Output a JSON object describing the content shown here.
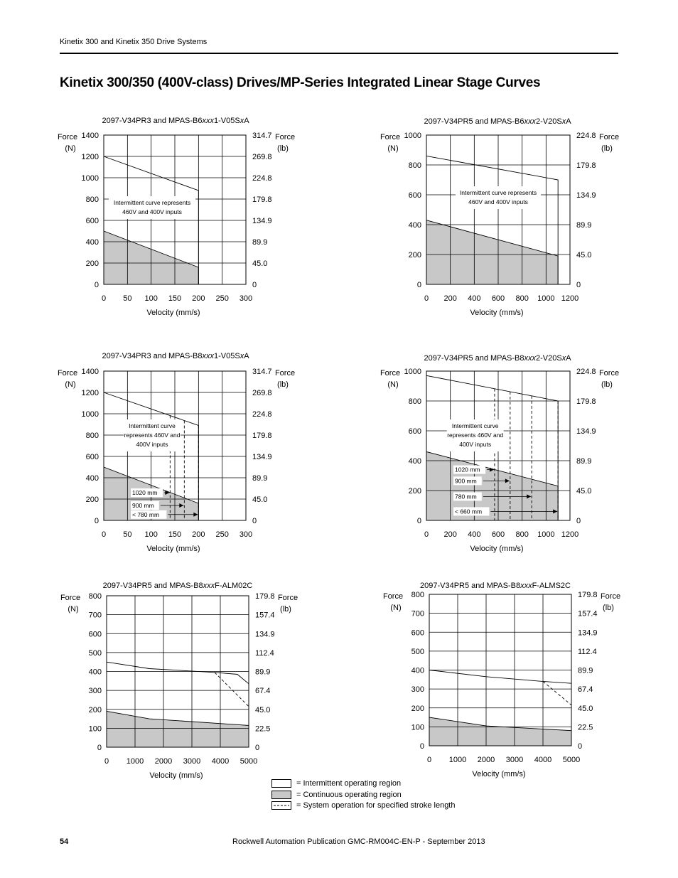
{
  "header": {
    "running_title": "Kinetix 300 and Kinetix 350 Drive Systems"
  },
  "page_title": "Kinetix 300/350 (400V-class) Drives/MP-Series Integrated Linear Stage Curves",
  "footer": {
    "page_number": "54",
    "publication": "Rockwell Automation Publication GMC-RM004C-EN-P - September 2013"
  },
  "legend": {
    "intermittent": "= Intermittent operating region",
    "continuous": "= Continuous operating region",
    "stroke": "= System operation for specified stroke length"
  },
  "colors": {
    "continuous_fill": "#c8c8c8",
    "line": "#000000"
  },
  "chart_data": [
    {
      "type": "area",
      "title_pre": "2097-V34PR3 and MPAS-B6",
      "title_it": "xxx",
      "title_mid": "1-V05S",
      "title_it2": "x",
      "title_post": "A",
      "ylabel_left": [
        "Force",
        "(N)"
      ],
      "ylabel_right": [
        "Force",
        "(lb)"
      ],
      "xlabel": "Velocity (mm/s)",
      "xlim": [
        0,
        300
      ],
      "ylim": [
        0,
        1400
      ],
      "xticks": [
        0,
        50,
        100,
        150,
        200,
        250,
        300
      ],
      "xtick_labels": [
        "0",
        "50",
        "100",
        "150",
        "200",
        "250",
        "300"
      ],
      "yticks": [
        0,
        200,
        400,
        600,
        800,
        1000,
        1200,
        1400
      ],
      "yticks_right": [
        "0",
        "45.0",
        "89.9",
        "134.9",
        "179.8",
        "224.8",
        "269.8",
        "314.7"
      ],
      "intermittent": [
        [
          0,
          1200
        ],
        [
          200,
          880
        ],
        [
          200,
          0
        ]
      ],
      "continuous": [
        [
          0,
          500
        ],
        [
          200,
          160
        ],
        [
          200,
          0
        ]
      ],
      "annotation": [
        "Intermittent curve represents",
        "460V and 400V inputs"
      ],
      "strokes": []
    },
    {
      "type": "area",
      "title_pre": "2097-V34PR5 and MPAS-B6",
      "title_it": "xxx",
      "title_mid": "2-V20S",
      "title_it2": "x",
      "title_post": "A",
      "ylabel_left": [
        "Force",
        "(N)"
      ],
      "ylabel_right": [
        "Force",
        "(lb)"
      ],
      "xlabel": "Velocity (mm/s)",
      "xlim": [
        0,
        1200
      ],
      "ylim": [
        0,
        1000
      ],
      "xticks": [
        0,
        200,
        400,
        600,
        800,
        1000,
        1200
      ],
      "xtick_labels": [
        "0",
        "200",
        "400",
        "600",
        "800",
        "1000",
        "1200"
      ],
      "yticks": [
        0,
        200,
        400,
        600,
        800,
        1000
      ],
      "yticks_right": [
        "0",
        "45.0",
        "89.9",
        "134.9",
        "179.8",
        "224.8"
      ],
      "intermittent": [
        [
          0,
          860
        ],
        [
          1100,
          700
        ],
        [
          1100,
          0
        ]
      ],
      "continuous": [
        [
          0,
          430
        ],
        [
          1100,
          190
        ],
        [
          1100,
          0
        ]
      ],
      "annotation": [
        "Intermittent curve represents",
        "460V and 400V inputs"
      ],
      "strokes": []
    },
    {
      "type": "area",
      "title_pre": "2097-V34PR3 and MPAS-B8",
      "title_it": "xxx",
      "title_mid": "1-V05S",
      "title_it2": "x",
      "title_post": "A",
      "ylabel_left": [
        "Force",
        "(N)"
      ],
      "ylabel_right": [
        "Force",
        "(lb)"
      ],
      "xlabel": "Velocity (mm/s)",
      "xlim": [
        0,
        300
      ],
      "ylim": [
        0,
        1400
      ],
      "xticks": [
        0,
        50,
        100,
        150,
        200,
        250,
        300
      ],
      "xtick_labels": [
        "0",
        "50",
        "100",
        "150",
        "200",
        "250",
        "300"
      ],
      "yticks": [
        0,
        200,
        400,
        600,
        800,
        1000,
        1200,
        1400
      ],
      "yticks_right": [
        "0",
        "45.0",
        "89.9",
        "134.9",
        "179.8",
        "224.8",
        "269.8",
        "314.7"
      ],
      "intermittent": [
        [
          0,
          1200
        ],
        [
          200,
          890
        ],
        [
          200,
          0
        ]
      ],
      "continuous": [
        [
          0,
          500
        ],
        [
          200,
          160
        ],
        [
          200,
          0
        ]
      ],
      "annotation": [
        "Intermittent curve",
        "represents 460V and",
        "400V inputs"
      ],
      "strokes": [
        {
          "label": "1020 mm",
          "x": 140,
          "y": 260
        },
        {
          "label": "900 mm",
          "x": 170,
          "y": 140
        },
        {
          "label": "< 780 mm",
          "x": 200,
          "y": 55
        }
      ]
    },
    {
      "type": "area",
      "title_pre": "2097-V34PR5 and MPAS-B8",
      "title_it": "xxx",
      "title_mid": "2-V20S",
      "title_it2": "x",
      "title_post": "A",
      "ylabel_left": [
        "Force",
        "(N)"
      ],
      "ylabel_right": [
        "Force",
        "(lb)"
      ],
      "xlabel": "Velocity (mm/s)",
      "xlim": [
        0,
        1200
      ],
      "ylim": [
        0,
        1000
      ],
      "xticks": [
        0,
        200,
        400,
        600,
        800,
        1000,
        1200
      ],
      "xtick_labels": [
        "0",
        "200",
        "400",
        "600",
        "800",
        "1000",
        "1200"
      ],
      "yticks": [
        0,
        200,
        400,
        600,
        800,
        1000
      ],
      "yticks_right": [
        "0",
        "45.0",
        "89.9",
        "134.9",
        "179.8",
        "224.8"
      ],
      "intermittent": [
        [
          0,
          970
        ],
        [
          1100,
          800
        ],
        [
          1100,
          0
        ]
      ],
      "continuous": [
        [
          0,
          460
        ],
        [
          1100,
          230
        ],
        [
          1100,
          0
        ]
      ],
      "annotation": [
        "Intermittent curve",
        "represents 460V and",
        "400V inputs"
      ],
      "strokes": [
        {
          "label": "1020 mm",
          "x": 570,
          "y": 340
        },
        {
          "label": "900 mm",
          "x": 700,
          "y": 265
        },
        {
          "label": "780 mm",
          "x": 880,
          "y": 160
        },
        {
          "label": "< 660 mm",
          "x": 1100,
          "y": 60
        }
      ]
    },
    {
      "type": "area",
      "title_pre": "2097-V34PR5 and MPAS-B8",
      "title_it": "xxx",
      "title_mid": "F-ALM02C",
      "title_it2": "",
      "title_post": "",
      "ylabel_left": [
        "Force",
        "(N)"
      ],
      "ylabel_right": [
        "Force",
        "(lb)"
      ],
      "xlabel": "Velocity (mm/s)",
      "xlim": [
        0,
        5000
      ],
      "ylim": [
        0,
        800
      ],
      "xticks": [
        0,
        1000,
        2000,
        3000,
        4000,
        5000
      ],
      "xtick_labels": [
        "0",
        "1000",
        "2000",
        "3000",
        "4000",
        "5000"
      ],
      "yticks": [
        0,
        100,
        200,
        300,
        400,
        500,
        600,
        700,
        800
      ],
      "yticks_right": [
        "0",
        "22.5",
        "45.0",
        "67.4",
        "89.9",
        "112.4",
        "134.9",
        "157.4",
        "179.8"
      ],
      "intermittent": [
        [
          0,
          450
        ],
        [
          1500,
          415
        ],
        [
          3800,
          395
        ],
        [
          4600,
          385
        ],
        [
          5000,
          335
        ]
      ],
      "continuous": [
        [
          0,
          190
        ],
        [
          1500,
          150
        ],
        [
          5000,
          115
        ]
      ],
      "annotation": [],
      "stroke_line": [
        [
          3800,
          395
        ],
        [
          5000,
          215
        ]
      ],
      "strokes": []
    },
    {
      "type": "area",
      "title_pre": "2097-V34PR5 and MPAS-B8",
      "title_it": "xxx",
      "title_mid": "F-ALMS2C",
      "title_it2": "",
      "title_post": "",
      "ylabel_left": [
        "Force",
        "(N)"
      ],
      "ylabel_right": [
        "Force",
        "(lb)"
      ],
      "xlabel": "Velocity (mm/s)",
      "xlim": [
        0,
        5000
      ],
      "ylim": [
        0,
        800
      ],
      "xticks": [
        0,
        1000,
        2000,
        3000,
        4000,
        5000
      ],
      "xtick_labels": [
        "0",
        "1000",
        "2000",
        "3000",
        "4000",
        "5000"
      ],
      "yticks": [
        0,
        100,
        200,
        300,
        400,
        500,
        600,
        700,
        800
      ],
      "yticks_right": [
        "0",
        "22.5",
        "45.0",
        "67.4",
        "89.9",
        "112.4",
        "134.9",
        "157.4",
        "179.8"
      ],
      "intermittent": [
        [
          0,
          400
        ],
        [
          2000,
          365
        ],
        [
          4000,
          340
        ],
        [
          5000,
          330
        ]
      ],
      "continuous": [
        [
          0,
          150
        ],
        [
          2000,
          105
        ],
        [
          5000,
          80
        ]
      ],
      "annotation": [],
      "stroke_line": [
        [
          4000,
          340
        ],
        [
          5000,
          215
        ]
      ],
      "strokes": []
    }
  ]
}
